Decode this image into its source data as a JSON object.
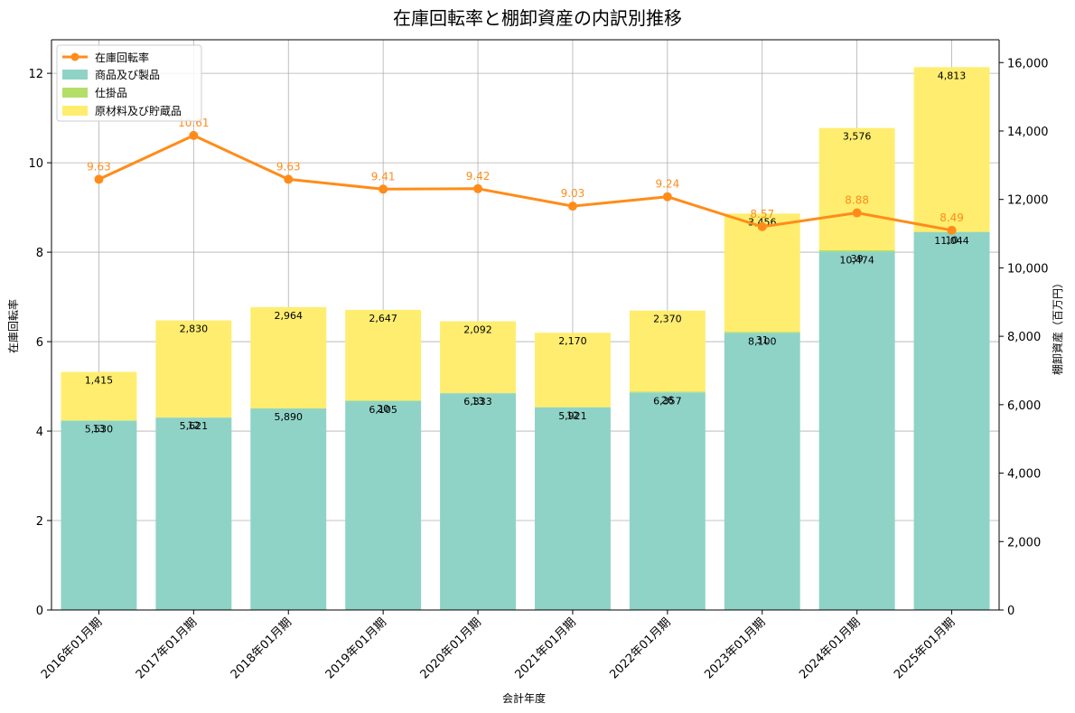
{
  "chart_data": {
    "type": "bar",
    "title": "在庫回転率と棚卸資産の内訳別推移",
    "xlabel": "会計年度",
    "ylabel_left": "在庫回転率",
    "ylabel_right": "棚卸資産（百万円）",
    "categories": [
      "2016年01月期",
      "2017年01月期",
      "2018年01月期",
      "2019年01月期",
      "2020年01月期",
      "2021年01月期",
      "2022年01月期",
      "2023年01月期",
      "2024年01月期",
      "2025年01月期"
    ],
    "ylim_left": [
      0,
      12.75
    ],
    "ylim_right": [
      0,
      16667
    ],
    "yticks_left": [
      0,
      2,
      4,
      6,
      8,
      10,
      12
    ],
    "yticks_right": [
      0,
      2000,
      4000,
      6000,
      8000,
      10000,
      12000,
      14000,
      16000
    ],
    "grid": true,
    "legend_position": "upper-left",
    "colors": {
      "finished": "#8fd3c7",
      "wip": "#b3de69",
      "raw": "#ffed6f",
      "turnover": "#ff8c1a",
      "grid": "#b0b0b0",
      "axis": "#000000"
    },
    "series": [
      {
        "name": "在庫回転率",
        "axis": "left",
        "kind": "line",
        "values": [
          9.63,
          10.61,
          9.63,
          9.41,
          9.42,
          9.03,
          9.24,
          8.57,
          8.88,
          8.49
        ],
        "labels": [
          "9.63",
          "10.61",
          "9.63",
          "9.41",
          "9.42",
          "9.03",
          "9.24",
          "8.57",
          "8.88",
          "8.49"
        ]
      },
      {
        "name": "商品及び製品",
        "axis": "right",
        "kind": "bar",
        "values": [
          5530,
          5621,
          5890,
          6105,
          6333,
          5921,
          6357,
          8100,
          10474,
          11044
        ],
        "labels": [
          "5,530",
          "5,621",
          "5,890",
          "6,105",
          "6,333",
          "5,921",
          "6,357",
          "8,100",
          "10,474",
          "11,044"
        ]
      },
      {
        "name": "仕掛品",
        "axis": "right",
        "kind": "bar",
        "values": [
          13,
          12,
          0,
          20,
          13,
          12,
          26,
          31,
          39,
          10
        ],
        "labels": [
          "13",
          "12",
          "",
          "20",
          "13",
          "12",
          "26",
          "31",
          "39",
          "10"
        ]
      },
      {
        "name": "原材料及び貯蔵品",
        "axis": "right",
        "kind": "bar",
        "values": [
          1415,
          2830,
          2964,
          2647,
          2092,
          2170,
          2370,
          3456,
          3576,
          4813
        ],
        "labels": [
          "1,415",
          "2,830",
          "2,964",
          "2,647",
          "2,092",
          "2,170",
          "2,370",
          "3,456",
          "3,576",
          "4,813"
        ]
      }
    ],
    "tick_labels_left": [
      "0",
      "2",
      "4",
      "6",
      "8",
      "10",
      "12"
    ],
    "tick_labels_right": [
      "0",
      "2,000",
      "4,000",
      "6,000",
      "8,000",
      "10,000",
      "12,000",
      "14,000",
      "16,000"
    ]
  }
}
